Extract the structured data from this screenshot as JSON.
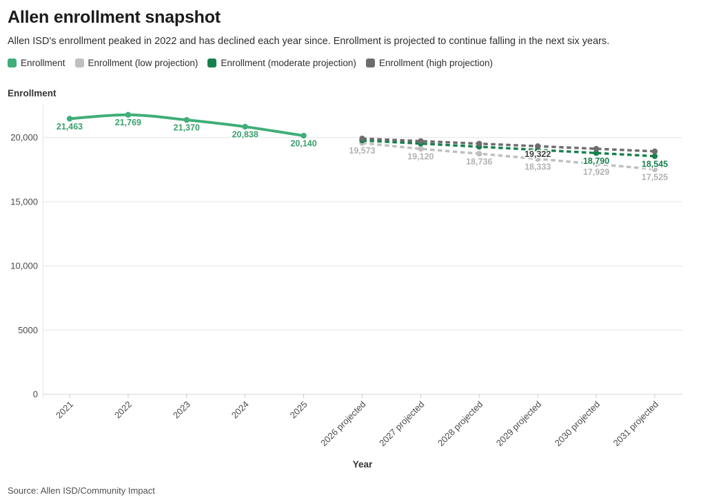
{
  "header": {
    "title": "Allen enrollment snapshot",
    "subtitle": "Allen ISD's enrollment peaked in 2022 and has declined each year since. Enrollment is projected to continue falling in the next six years."
  },
  "legend": [
    {
      "label": "Enrollment",
      "color": "#3fae78"
    },
    {
      "label": "Enrollment (low projection)",
      "color": "#bfbfbf"
    },
    {
      "label": "Enrollment (moderate projection)",
      "color": "#17804d"
    },
    {
      "label": "Enrollment (high projection)",
      "color": "#6d6d6d"
    }
  ],
  "chart_data": {
    "type": "line",
    "title": "Allen enrollment snapshot",
    "xlabel": "Year",
    "ylabel": "Enrollment",
    "ylim": [
      0,
      22500
    ],
    "grid": "horizontal",
    "legend_position": "top",
    "yticks": {
      "values": [
        0,
        5000,
        10000,
        15000,
        20000
      ],
      "labels": [
        "0",
        "5000",
        "10,000",
        "15,000",
        "20,000"
      ]
    },
    "categories": [
      "2021",
      "2022",
      "2023",
      "2024",
      "2025",
      "2026 projected",
      "2027 projected",
      "2028 projected",
      "2029 projected",
      "2030 projected",
      "2031 projected"
    ],
    "series": [
      {
        "name": "Enrollment",
        "color": "#3fae78",
        "label_color": "#3aa06c",
        "dashed": false,
        "x_index": [
          0,
          1,
          2,
          3,
          4
        ],
        "values": [
          21463,
          21769,
          21370,
          20838,
          20140
        ],
        "point_labels": [
          "21,463",
          "21,769",
          "21,370",
          "20,838",
          "20,140"
        ]
      },
      {
        "name": "Enrollment (low projection)",
        "color": "#bfbfbf",
        "label_color": "#b3b3b3",
        "dashed": true,
        "x_index": [
          5,
          6,
          7,
          8,
          9,
          10
        ],
        "values": [
          19573,
          19120,
          18736,
          18333,
          17929,
          17525
        ],
        "point_labels": [
          "19,573",
          "19,120",
          "18,736",
          "18,333",
          "17,929",
          "17,525"
        ]
      },
      {
        "name": "Enrollment (moderate projection)",
        "color": "#17804d",
        "label_color": "#17804d",
        "dashed": true,
        "x_index": [
          5,
          6,
          7,
          8,
          9,
          10
        ],
        "values": [
          19770,
          19525,
          19280,
          19035,
          18790,
          18545
        ],
        "point_labels": [
          null,
          null,
          null,
          null,
          "18,790",
          "18,545"
        ]
      },
      {
        "name": "Enrollment (high projection)",
        "color": "#6d6d6d",
        "label_color": "#424242",
        "dashed": true,
        "x_index": [
          5,
          6,
          7,
          8,
          9,
          10
        ],
        "values": [
          19920,
          19720,
          19520,
          19322,
          19120,
          18920
        ],
        "point_labels": [
          null,
          null,
          null,
          "19,322",
          null,
          null
        ]
      }
    ]
  },
  "footer": {
    "source": "Source: Allen ISD/Community Impact"
  }
}
